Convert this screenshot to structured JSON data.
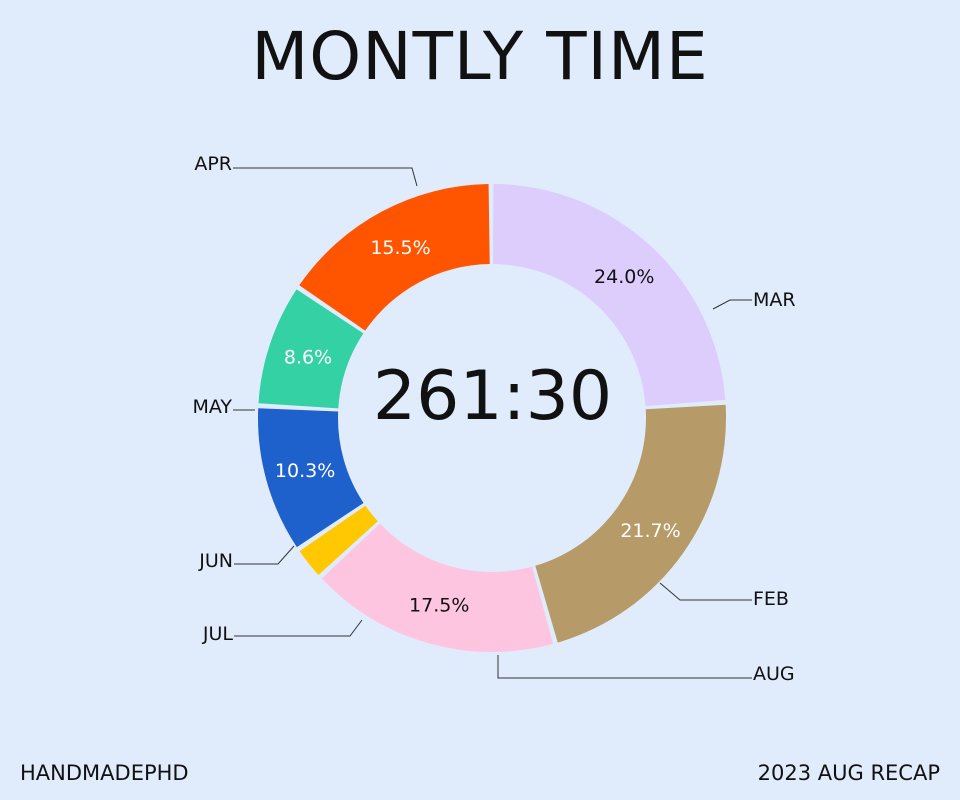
{
  "title": "MONTLY TIME",
  "center_total": "261:30",
  "footer": {
    "left": "HANDMADEPHD",
    "right": "2023 AUG RECAP"
  },
  "chart_data": {
    "type": "pie",
    "style": "donut",
    "categories": [
      "AUG",
      "FEB",
      "MAR",
      "APR",
      "MAY",
      "JUN",
      "JUL"
    ],
    "values": [
      8.6,
      15.5,
      24.0,
      21.7,
      17.5,
      2.4,
      10.3
    ],
    "value_labels": [
      "8.6%",
      "15.5%",
      "24.0%",
      "21.7%",
      "17.5%",
      "",
      "10.3%"
    ],
    "colors": [
      "#33d1a4",
      "#ff5500",
      "#dccdfd",
      "#b69a68",
      "#fdc5e0",
      "#ffc800",
      "#1e60cc"
    ],
    "label_colors": [
      "#ffffff",
      "#ffffff",
      "#111111",
      "#ffffff",
      "#111111",
      "#111111",
      "#ffffff"
    ],
    "legend": "none"
  }
}
